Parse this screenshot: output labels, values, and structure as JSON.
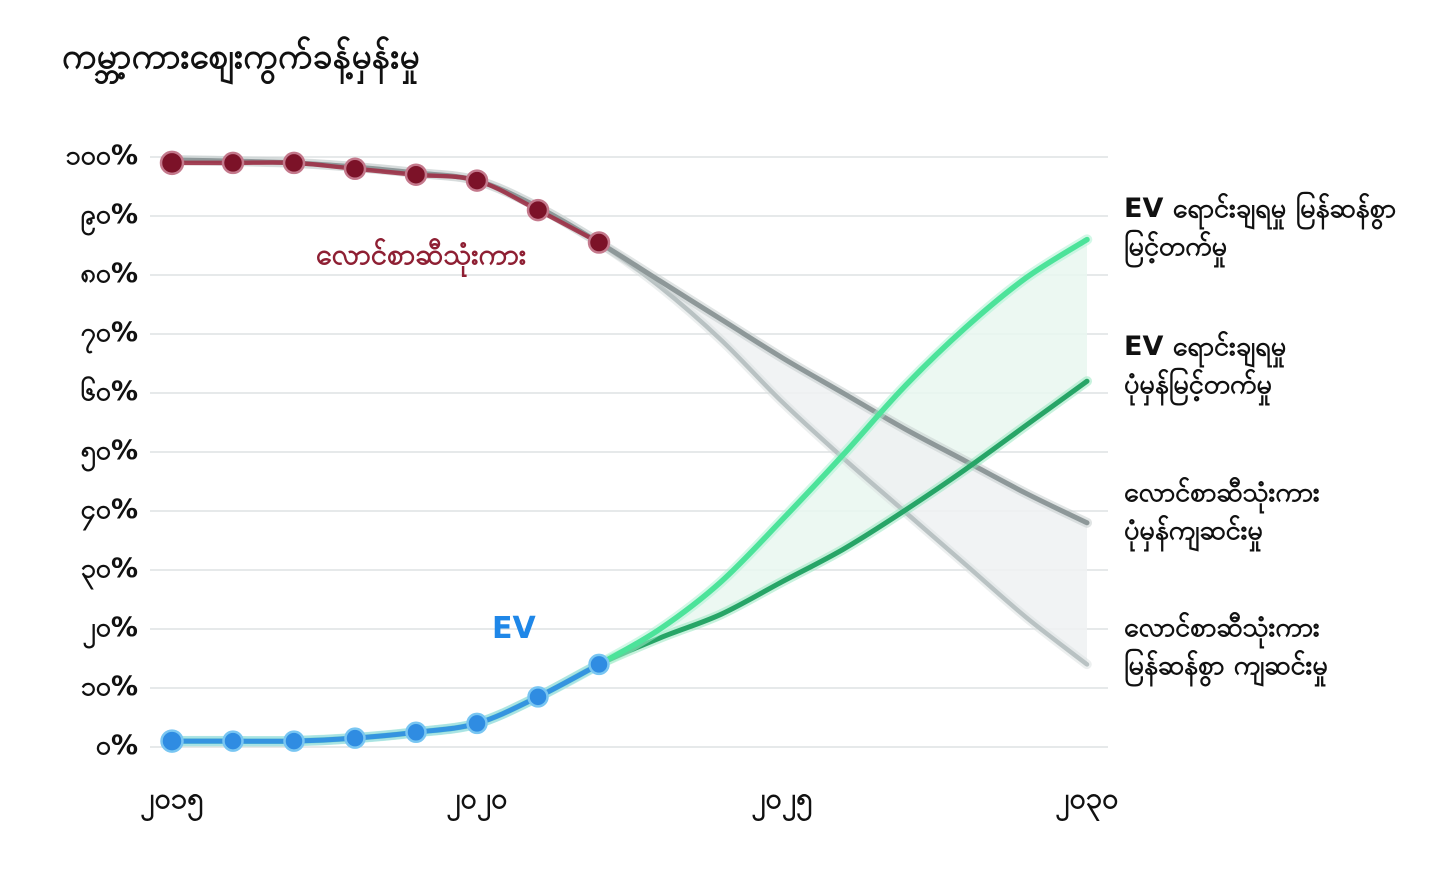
{
  "title": "ကမ္ဘာ့ကားစျေးကွက်ခန့်မှန်းမှု",
  "colors": {
    "ice_history": "#8e2138",
    "ice_marker": "#7c1228",
    "ice_marker_ring": "#c4798c",
    "ev_history": "#2f8ce2",
    "ev_marker": "#2f8ce2",
    "ev_marker_ring": "#79c6f2",
    "ev_rapid": "#4ce39a",
    "ev_normal": "#27a567",
    "ice_normal": "#8e9899",
    "ice_rapid": "#b9c2c3",
    "ev_band_fill": "#e9f7f0",
    "ice_band_fill": "#eef1f2",
    "gridline": "#d8dcdd",
    "text": "#111111"
  },
  "chart": {
    "in_labels": {
      "ice": "လောင်စာဆီသုံးကား",
      "ev": "EV"
    },
    "right_labels": [
      {
        "line1": "EV ရောင်းချရမှု မြန်ဆန်စွာ",
        "line2": "မြင့်တက်မှု"
      },
      {
        "line1": "EV ရောင်းချရမှု",
        "line2": "ပုံမှန်မြင့်တက်မှု"
      },
      {
        "line1": "လောင်စာဆီသုံးကား",
        "line2": "ပုံမှန်ကျဆင်းမှု"
      },
      {
        "line1": "လောင်စာဆီသုံးကား",
        "line2": "မြန်ဆန်စွာ ကျဆင်းမှု"
      }
    ]
  },
  "chart_data": {
    "type": "line",
    "title": "ကမ္ဘာ့ကားစျေးကွက်ခန့်မှန်းမှု",
    "ylim": [
      0,
      100
    ],
    "grid": "horizontal",
    "legend_position": "right-annotations",
    "y_ticks": [
      {
        "value": 100,
        "label": "၁၀၀%"
      },
      {
        "value": 90,
        "label": "၉၀%"
      },
      {
        "value": 80,
        "label": "၈၀%"
      },
      {
        "value": 70,
        "label": "၇၀%"
      },
      {
        "value": 60,
        "label": "၆၀%"
      },
      {
        "value": 50,
        "label": "၅၀%"
      },
      {
        "value": 40,
        "label": "၄၀%"
      },
      {
        "value": 30,
        "label": "၃၀%"
      },
      {
        "value": 20,
        "label": "၂၀%"
      },
      {
        "value": 10,
        "label": "၁၀%"
      },
      {
        "value": 0,
        "label": "၀%"
      }
    ],
    "x_ticks": [
      {
        "year": 2015,
        "label": "၂၀၁၅"
      },
      {
        "year": 2020,
        "label": "၂၀၂၀"
      },
      {
        "year": 2025,
        "label": "၂၀၂၅"
      },
      {
        "year": 2030,
        "label": "၂၀၃၀"
      }
    ],
    "series": [
      {
        "name": "ice-rapid-decline",
        "label": "လောင်စာဆီသုံးကား မြန်ဆန်စွာ ကျဆင်းမှု",
        "type": "line",
        "color": "#b9c2c3",
        "width": 4.5,
        "glow": "#d9dfe0",
        "x": [
          2015,
          2016,
          2017,
          2018,
          2019,
          2020,
          2021,
          2022,
          2023,
          2024,
          2025,
          2026,
          2027,
          2028,
          2029,
          2030
        ],
        "values": [
          99.5,
          99.3,
          99,
          98.3,
          97.3,
          96,
          91.5,
          85.5,
          78,
          69,
          58.5,
          49,
          40,
          31,
          22,
          14
        ]
      },
      {
        "name": "ice-normal-decline",
        "label": "လောင်စာဆီသုံးကား ပုံမှန်ကျဆင်းမှု",
        "type": "line",
        "color": "#8e9899",
        "width": 5,
        "glow": "#c2c9ca",
        "x": [
          2015,
          2016,
          2017,
          2018,
          2019,
          2020,
          2021,
          2022,
          2023,
          2024,
          2025,
          2026,
          2027,
          2028,
          2029,
          2030
        ],
        "values": [
          99.5,
          99.3,
          99,
          98.3,
          97.3,
          96,
          91.5,
          85.5,
          79,
          72.5,
          66,
          60,
          54,
          48.5,
          43,
          38
        ]
      },
      {
        "name": "ev-sales-normal-rise",
        "label": "EV ရောင်းချရမှု ပုံမှန်မြင့်တက်မှု",
        "type": "line",
        "color": "#27a567",
        "width": 5,
        "glow": "#8fe6bb",
        "x": [
          2015,
          2016,
          2017,
          2018,
          2019,
          2020,
          2021,
          2022,
          2023,
          2024,
          2025,
          2026,
          2027,
          2028,
          2029,
          2030
        ],
        "values": [
          1,
          1,
          1,
          1.5,
          2.5,
          4,
          8.5,
          14,
          18.5,
          22.5,
          28,
          33.5,
          40,
          47,
          54.5,
          62
        ]
      },
      {
        "name": "ev-sales-rapid-rise",
        "label": "EV ရောင်းချရမှု မြန်ဆန်စွာ မြင့်တက်မှု",
        "type": "line",
        "color": "#4ce39a",
        "width": 5.5,
        "glow": "#a5f2cf",
        "x": [
          2015,
          2016,
          2017,
          2018,
          2019,
          2020,
          2021,
          2022,
          2023,
          2024,
          2025,
          2026,
          2027,
          2028,
          2029,
          2030
        ],
        "values": [
          1,
          1,
          1,
          1.5,
          2.5,
          4,
          8.5,
          14,
          20,
          28,
          38.5,
          49.5,
          61,
          71,
          79.5,
          86
        ]
      },
      {
        "name": "ice-history",
        "label": "လောင်စာဆီသုံးကား",
        "type": "line+markers",
        "color": "#9d3147",
        "width": 4.5,
        "marker_fill": "#7c1228",
        "marker_ring": "#c4798c",
        "marker_r": 10,
        "x": [
          2015,
          2016,
          2017,
          2018,
          2019,
          2020,
          2021,
          2022
        ],
        "values": [
          99,
          99,
          99,
          98,
          97,
          96,
          91,
          85.5
        ]
      },
      {
        "name": "ev-history",
        "label": "EV",
        "type": "line+markers",
        "color": "#2f8ce2",
        "width": 5,
        "glow": "#9bd4f2",
        "marker_fill": "#2f8ce2",
        "marker_ring": "#79c6f2",
        "marker_r": 9.5,
        "x": [
          2015,
          2016,
          2017,
          2018,
          2019,
          2020,
          2021,
          2022
        ],
        "values": [
          1,
          1,
          1,
          1.5,
          2.5,
          4,
          8.5,
          14
        ]
      }
    ],
    "bands": [
      {
        "name": "ev-projection-band",
        "upper": "ev-sales-rapid-rise",
        "lower": "ev-sales-normal-rise",
        "fill": "#e9f7f0",
        "from": 2022
      },
      {
        "name": "ice-projection-band",
        "upper": "ice-normal-decline",
        "lower": "ice-rapid-decline",
        "fill": "#eef1f2",
        "from": 2022
      }
    ]
  }
}
